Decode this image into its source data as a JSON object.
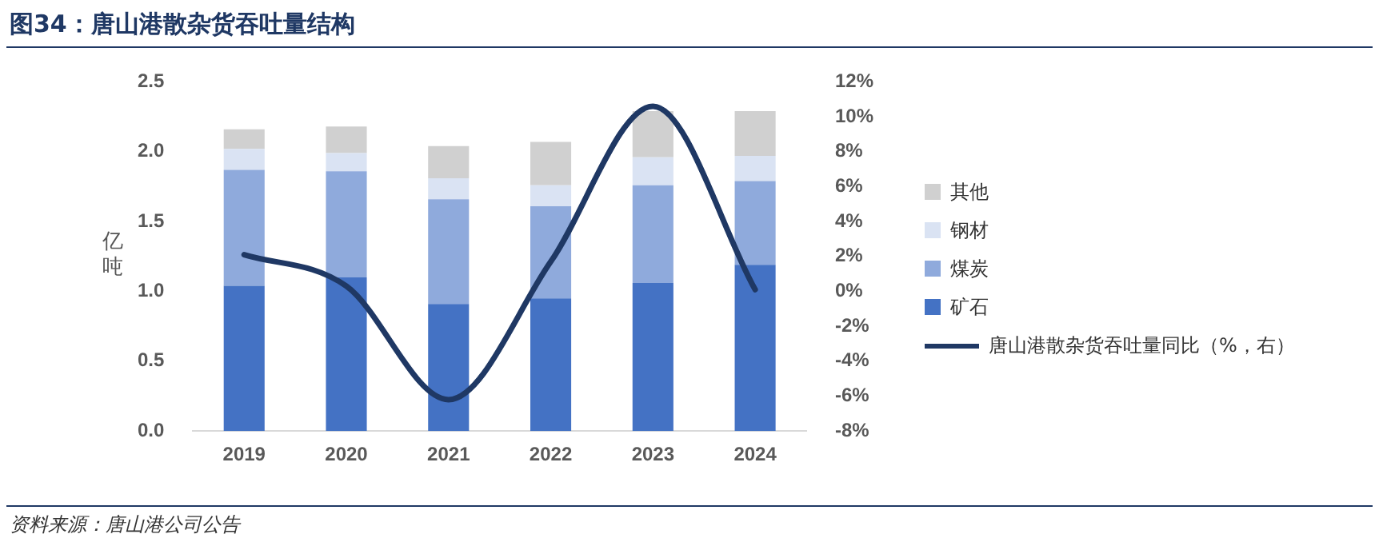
{
  "chart_data": {
    "type": "bar",
    "title": "图34：唐山港散杂货吞吐量结构",
    "ylabel": "亿吨",
    "annotations": [
      "资料来源：唐山港公司公告"
    ],
    "categories": [
      "2019",
      "2020",
      "2021",
      "2022",
      "2023",
      "2024"
    ],
    "stacked": true,
    "series": [
      {
        "name": "矿石",
        "color": "#4472c4",
        "values": [
          1.04,
          1.1,
          0.91,
          0.95,
          1.06,
          1.19
        ]
      },
      {
        "name": "煤炭",
        "color": "#8faadc",
        "values": [
          0.83,
          0.76,
          0.75,
          0.66,
          0.7,
          0.6
        ]
      },
      {
        "name": "钢材",
        "color": "#dae3f3",
        "values": [
          0.15,
          0.13,
          0.15,
          0.15,
          0.2,
          0.18
        ]
      },
      {
        "name": "其他",
        "color": "#d0d0d0",
        "values": [
          0.14,
          0.19,
          0.23,
          0.31,
          0.33,
          0.32
        ]
      },
      {
        "name": "唐山港散杂货吞吐量同比（%，右）",
        "type": "line",
        "axis": "y2",
        "color": "#1f3864",
        "marker": "none",
        "values": [
          2.1,
          0.3,
          -6.2,
          1.7,
          10.6,
          0.1
        ]
      }
    ],
    "ylim": [
      0,
      2.5
    ],
    "yticks": [
      {
        "value": 0,
        "label": "0.0"
      },
      0.5,
      {
        "value": 1,
        "label": "1.0"
      },
      1.5,
      {
        "value": 2,
        "label": "2.0"
      },
      2.5
    ],
    "y2lim": [
      -8,
      12
    ],
    "y2ticks": [
      {
        "value": -8,
        "label": "-8%"
      },
      {
        "value": -6,
        "label": "-6%"
      },
      {
        "value": -4,
        "label": "-4%"
      },
      {
        "value": -2,
        "label": "-2%"
      },
      {
        "value": 0,
        "label": "0%"
      },
      {
        "value": 2,
        "label": "2%"
      },
      {
        "value": 4,
        "label": "4%"
      },
      {
        "value": 6,
        "label": "6%"
      },
      {
        "value": 8,
        "label": "8%"
      },
      {
        "value": 10,
        "label": "10%"
      },
      {
        "value": 12,
        "label": "12%"
      }
    ],
    "grid": false,
    "legend": "right"
  }
}
